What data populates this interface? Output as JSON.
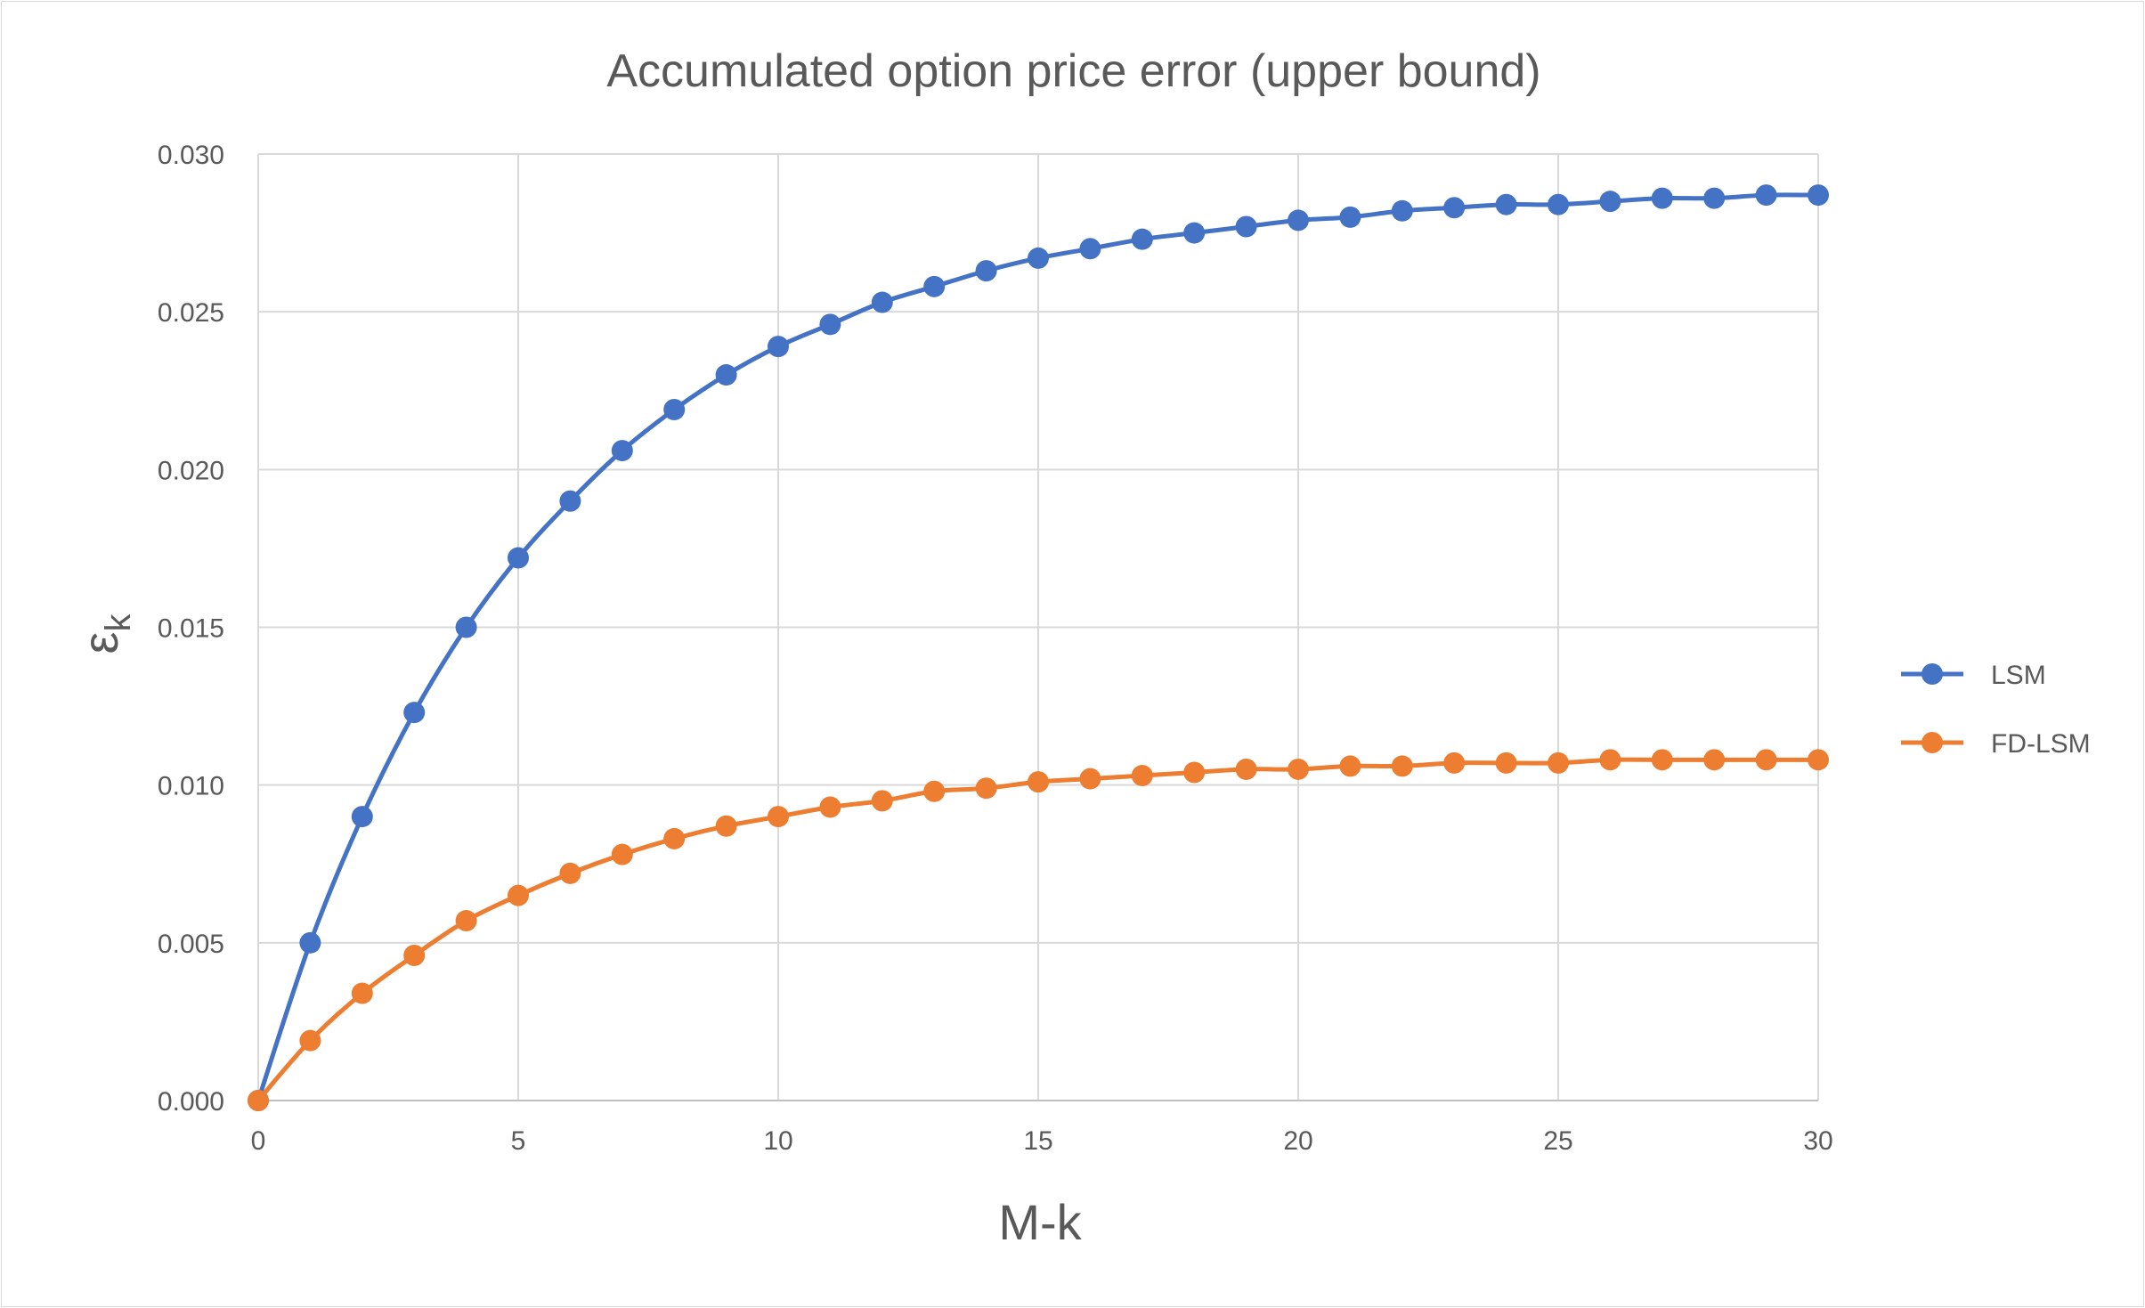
{
  "chart_data": {
    "type": "line",
    "title": "Accumulated option price error (upper bound)",
    "xlabel": "M-k",
    "ylabel": "ε",
    "ylabel_subscript": "k",
    "xlim": [
      0,
      30
    ],
    "ylim": [
      0,
      0.03
    ],
    "x_ticks": [
      "0",
      "5",
      "10",
      "15",
      "20",
      "25",
      "30"
    ],
    "y_ticks": [
      "0.000",
      "0.005",
      "0.010",
      "0.015",
      "0.020",
      "0.025",
      "0.030"
    ],
    "grid": true,
    "legend_position": "right",
    "x": [
      0,
      1,
      2,
      3,
      4,
      5,
      6,
      7,
      8,
      9,
      10,
      11,
      12,
      13,
      14,
      15,
      16,
      17,
      18,
      19,
      20,
      21,
      22,
      23,
      24,
      25,
      26,
      27,
      28,
      29,
      30
    ],
    "series": [
      {
        "name": "LSM",
        "color": "#4472c4",
        "values": [
          0.0,
          0.005,
          0.009,
          0.0123,
          0.015,
          0.0172,
          0.019,
          0.0206,
          0.0219,
          0.023,
          0.0239,
          0.0246,
          0.0253,
          0.0258,
          0.0263,
          0.0267,
          0.027,
          0.0273,
          0.0275,
          0.0277,
          0.0279,
          0.028,
          0.0282,
          0.0283,
          0.0284,
          0.0284,
          0.0285,
          0.0286,
          0.0286,
          0.0287,
          0.0287
        ]
      },
      {
        "name": "FD-LSM",
        "color": "#ed7d31",
        "values": [
          0.0,
          0.0019,
          0.0034,
          0.0046,
          0.0057,
          0.0065,
          0.0072,
          0.0078,
          0.0083,
          0.0087,
          0.009,
          0.0093,
          0.0095,
          0.0098,
          0.0099,
          0.0101,
          0.0102,
          0.0103,
          0.0104,
          0.0105,
          0.0105,
          0.0106,
          0.0106,
          0.0107,
          0.0107,
          0.0107,
          0.0108,
          0.0108,
          0.0108,
          0.0108,
          0.0108
        ]
      }
    ]
  }
}
